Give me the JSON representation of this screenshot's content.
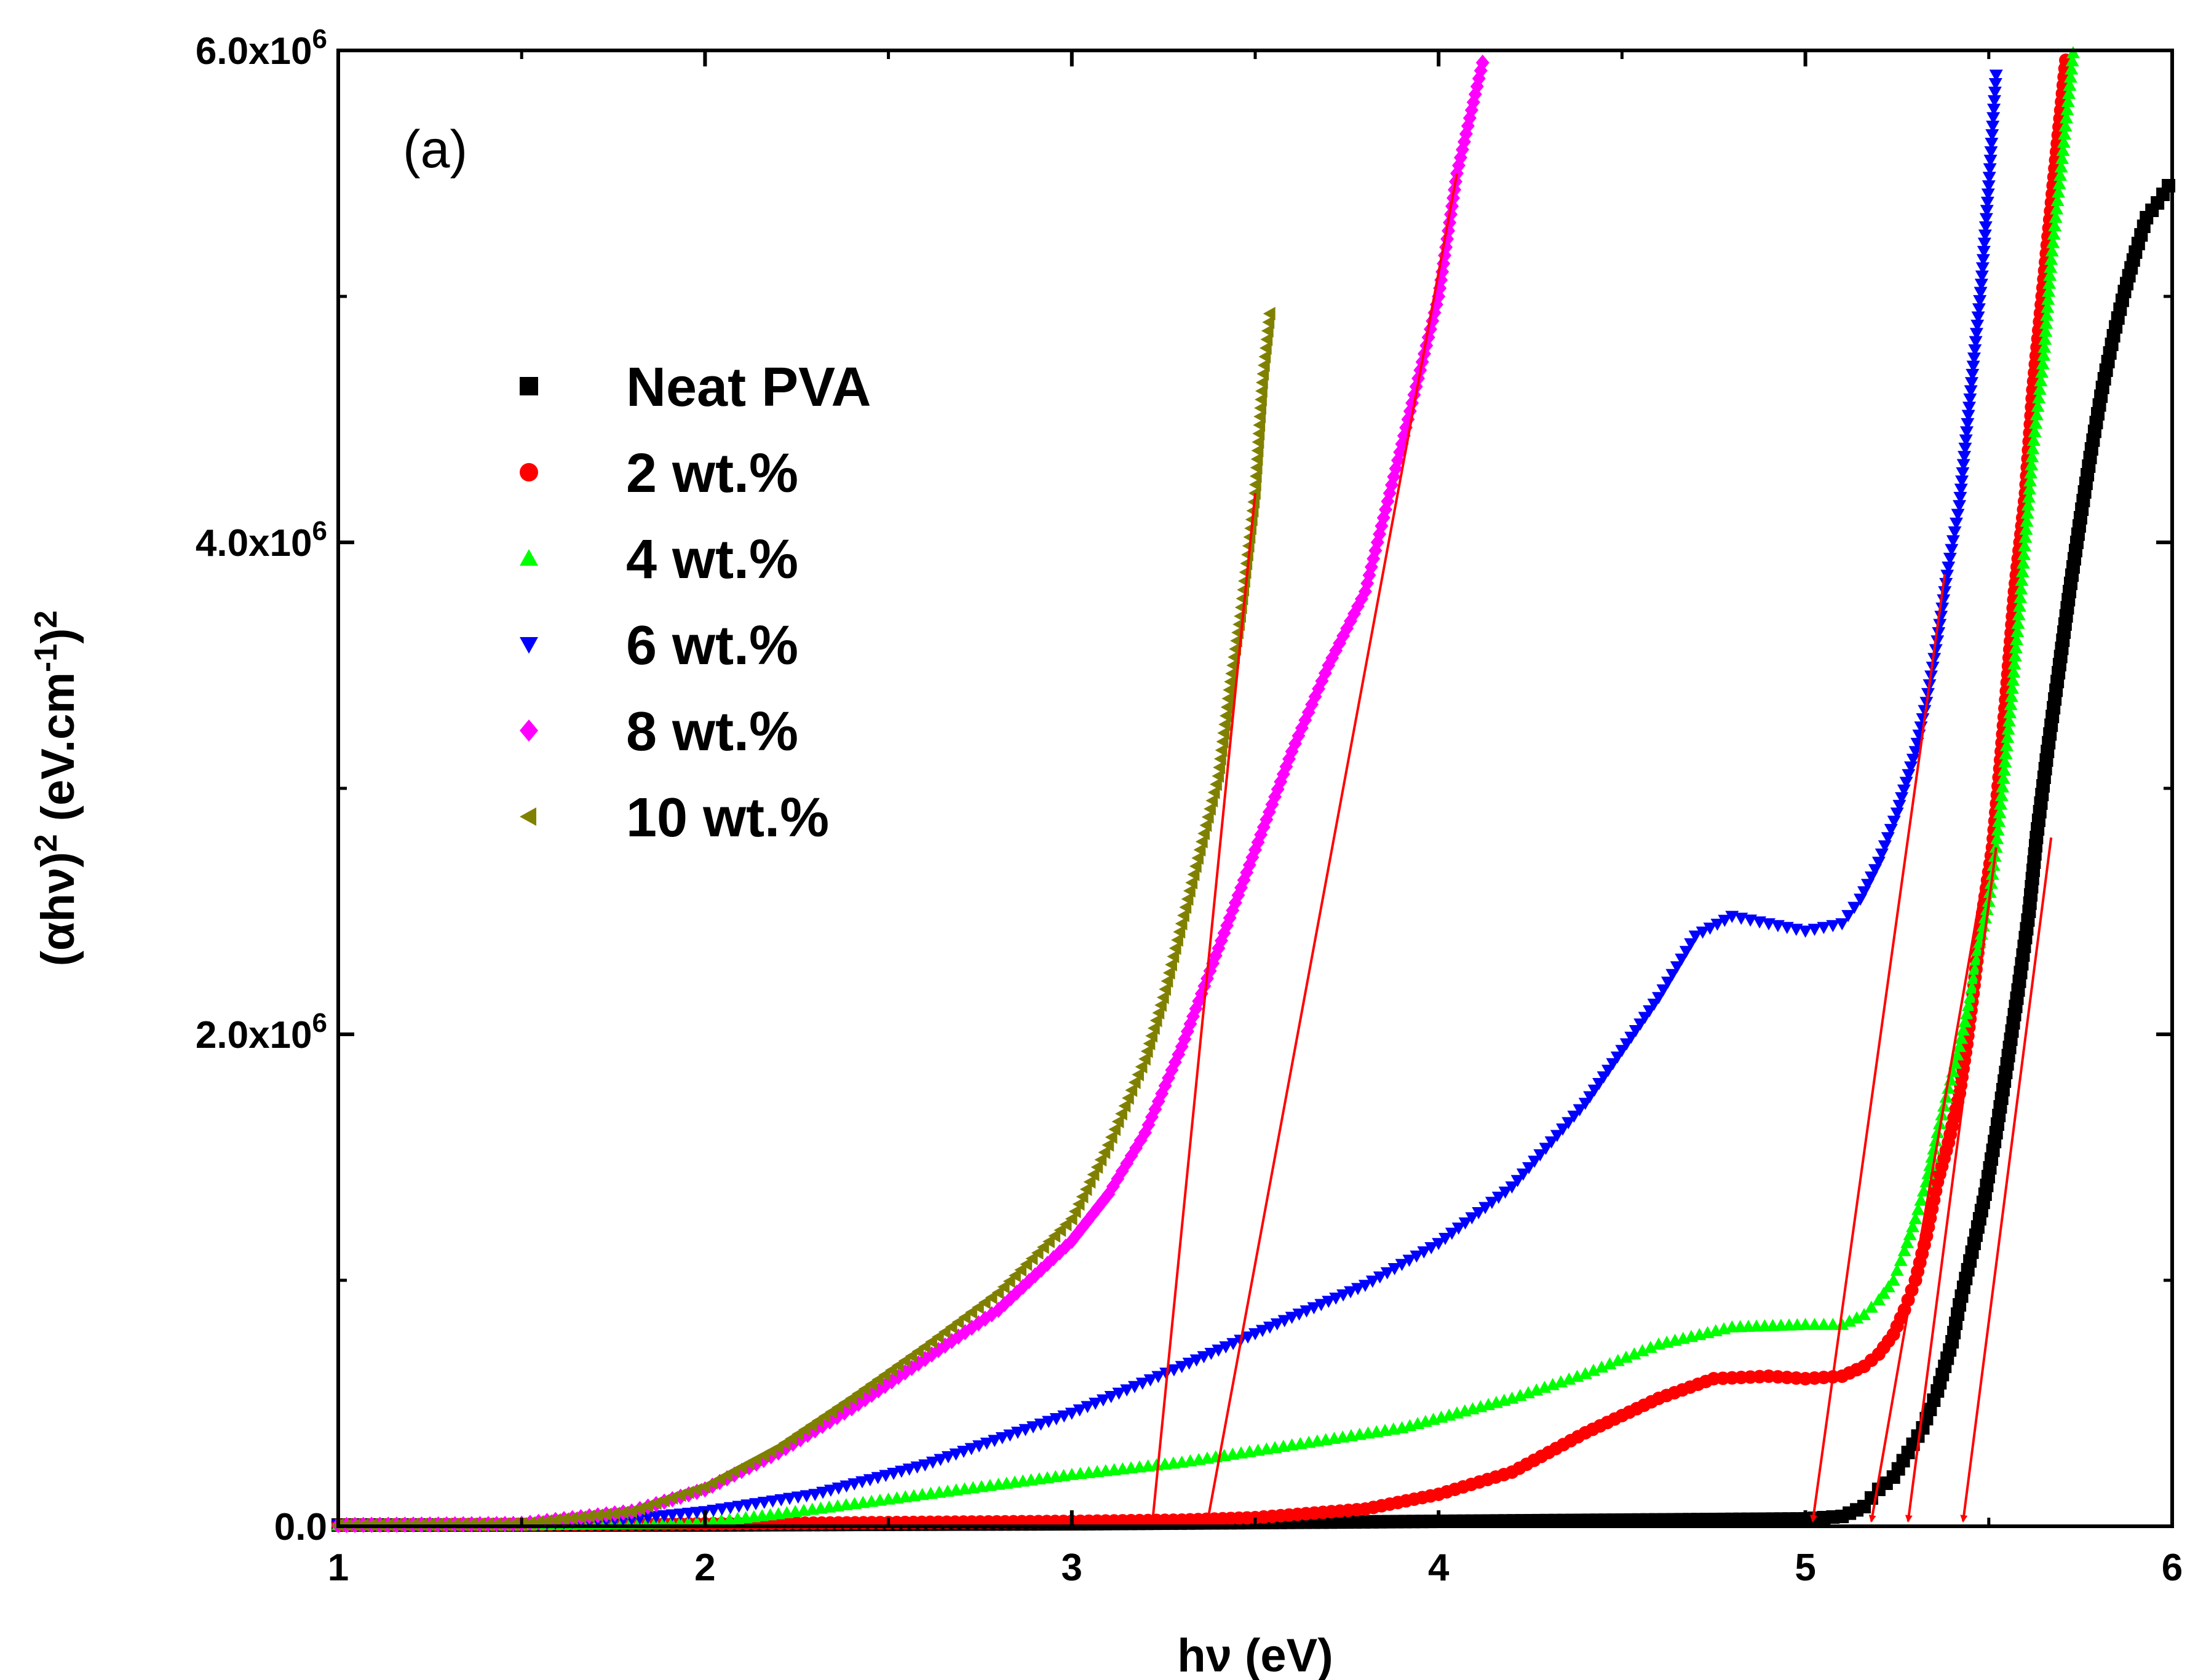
{
  "chart_data": {
    "type": "scatter",
    "panel_label": "(a)",
    "xlabel": "hν (eV)",
    "ylabel": "(αhν)² (eV.cm⁻¹)²",
    "ylabel_parts": {
      "base1": "(αhν)",
      "sup1": "2",
      "base2": " (eV.cm",
      "sup2": "-1",
      "base3": ")",
      "sup3": "2"
    },
    "xlim": [
      1,
      6
    ],
    "ylim": [
      0,
      6000000
    ],
    "x_ticks": [
      1,
      2,
      3,
      4,
      5,
      6
    ],
    "x_tick_labels": [
      "1",
      "2",
      "3",
      "4",
      "5",
      "6"
    ],
    "y_major_ticks": [
      0,
      2000000,
      4000000,
      6000000
    ],
    "y_tick_labels": [
      {
        "mantissa": "0.0",
        "exp": ""
      },
      {
        "mantissa": "2.0x10",
        "exp": "6"
      },
      {
        "mantissa": "4.0x10",
        "exp": "6"
      },
      {
        "mantissa": "6.0x10",
        "exp": "6"
      }
    ],
    "grid": false,
    "legend_position": "upper-left",
    "series": [
      {
        "name": "Neat PVA",
        "color": "#000000",
        "marker": "square",
        "points": [
          [
            1.0,
            5000
          ],
          [
            1.5,
            5000
          ],
          [
            2.0,
            5000
          ],
          [
            2.5,
            8000
          ],
          [
            3.0,
            10000
          ],
          [
            3.5,
            15000
          ],
          [
            4.0,
            20000
          ],
          [
            4.5,
            25000
          ],
          [
            4.8,
            28000
          ],
          [
            5.0,
            30000
          ],
          [
            5.1,
            40000
          ],
          [
            5.16,
            80000
          ],
          [
            5.2,
            150000
          ],
          [
            5.24,
            200000
          ],
          [
            5.28,
            300000
          ],
          [
            5.32,
            400000
          ],
          [
            5.36,
            550000
          ],
          [
            5.4,
            750000
          ],
          [
            5.42,
            900000
          ],
          [
            5.46,
            1150000
          ],
          [
            5.49,
            1350000
          ],
          [
            5.52,
            1600000
          ],
          [
            5.55,
            1880000
          ],
          [
            5.58,
            2180000
          ],
          [
            5.61,
            2500000
          ],
          [
            5.63,
            2800000
          ],
          [
            5.66,
            3150000
          ],
          [
            5.69,
            3470000
          ],
          [
            5.72,
            3800000
          ],
          [
            5.75,
            4100000
          ],
          [
            5.78,
            4380000
          ],
          [
            5.81,
            4630000
          ],
          [
            5.84,
            4840000
          ],
          [
            5.87,
            5020000
          ],
          [
            5.9,
            5180000
          ],
          [
            5.93,
            5320000
          ],
          [
            5.96,
            5380000
          ],
          [
            5.99,
            5450000
          ]
        ]
      },
      {
        "name": "2 wt.%",
        "color": "#ff0000",
        "marker": "circle",
        "points": [
          [
            1.0,
            5000
          ],
          [
            2.0,
            10000
          ],
          [
            2.5,
            15000
          ],
          [
            3.0,
            20000
          ],
          [
            3.3,
            25000
          ],
          [
            3.5,
            35000
          ],
          [
            3.8,
            70000
          ],
          [
            4.0,
            130000
          ],
          [
            4.2,
            220000
          ],
          [
            4.4,
            380000
          ],
          [
            4.6,
            520000
          ],
          [
            4.75,
            600000
          ],
          [
            4.9,
            610000
          ],
          [
            5.0,
            600000
          ],
          [
            5.1,
            610000
          ],
          [
            5.16,
            650000
          ],
          [
            5.2,
            700000
          ],
          [
            5.24,
            780000
          ],
          [
            5.27,
            880000
          ],
          [
            5.3,
            1000000
          ],
          [
            5.33,
            1180000
          ],
          [
            5.36,
            1400000
          ],
          [
            5.39,
            1560000
          ],
          [
            5.42,
            1760000
          ],
          [
            5.44,
            1960000
          ],
          [
            5.46,
            2200000
          ],
          [
            5.48,
            2460000
          ],
          [
            5.51,
            2760000
          ],
          [
            5.53,
            3080000
          ],
          [
            5.55,
            3430000
          ],
          [
            5.57,
            3800000
          ],
          [
            5.6,
            4200000
          ],
          [
            5.62,
            4620000
          ],
          [
            5.65,
            5070000
          ],
          [
            5.68,
            5520000
          ],
          [
            5.71,
            5960000
          ]
        ]
      },
      {
        "name": "4 wt.%",
        "color": "#00ff00",
        "marker": "triangle-up",
        "points": [
          [
            1.0,
            5000
          ],
          [
            1.5,
            5000
          ],
          [
            2.0,
            15000
          ],
          [
            2.2,
            50000
          ],
          [
            2.5,
            110000
          ],
          [
            2.8,
            170000
          ],
          [
            3.0,
            210000
          ],
          [
            3.3,
            260000
          ],
          [
            3.6,
            330000
          ],
          [
            3.9,
            400000
          ],
          [
            4.2,
            520000
          ],
          [
            4.4,
            620000
          ],
          [
            4.6,
            740000
          ],
          [
            4.8,
            810000
          ],
          [
            5.0,
            820000
          ],
          [
            5.1,
            820000
          ],
          [
            5.16,
            860000
          ],
          [
            5.2,
            920000
          ],
          [
            5.24,
            1000000
          ],
          [
            5.27,
            1120000
          ],
          [
            5.3,
            1250000
          ],
          [
            5.33,
            1400000
          ],
          [
            5.36,
            1600000
          ],
          [
            5.39,
            1780000
          ],
          [
            5.42,
            1950000
          ],
          [
            5.45,
            2150000
          ],
          [
            5.47,
            2340000
          ],
          [
            5.5,
            2540000
          ],
          [
            5.52,
            2760000
          ],
          [
            5.54,
            3040000
          ],
          [
            5.56,
            3340000
          ],
          [
            5.58,
            3670000
          ],
          [
            5.6,
            4020000
          ],
          [
            5.62,
            4380000
          ],
          [
            5.65,
            4760000
          ],
          [
            5.67,
            5150000
          ],
          [
            5.7,
            5560000
          ],
          [
            5.73,
            5990000
          ]
        ]
      },
      {
        "name": "6 wt.%",
        "color": "#0000ff",
        "marker": "triangle-down",
        "points": [
          [
            1.0,
            5000
          ],
          [
            1.5,
            5000
          ],
          [
            1.8,
            30000
          ],
          [
            2.0,
            60000
          ],
          [
            2.3,
            130000
          ],
          [
            2.6,
            250000
          ],
          [
            3.0,
            460000
          ],
          [
            3.3,
            650000
          ],
          [
            3.6,
            850000
          ],
          [
            3.8,
            980000
          ],
          [
            4.0,
            1150000
          ],
          [
            4.2,
            1380000
          ],
          [
            4.4,
            1720000
          ],
          [
            4.6,
            2150000
          ],
          [
            4.7,
            2400000
          ],
          [
            4.8,
            2480000
          ],
          [
            4.9,
            2450000
          ],
          [
            5.0,
            2420000
          ],
          [
            5.1,
            2450000
          ],
          [
            5.15,
            2550000
          ],
          [
            5.2,
            2700000
          ],
          [
            5.25,
            2900000
          ],
          [
            5.3,
            3150000
          ],
          [
            5.33,
            3350000
          ],
          [
            5.36,
            3600000
          ],
          [
            5.39,
            3900000
          ],
          [
            5.42,
            4150000
          ],
          [
            5.44,
            4450000
          ],
          [
            5.46,
            4750000
          ],
          [
            5.48,
            5050000
          ],
          [
            5.5,
            5450000
          ],
          [
            5.52,
            5900000
          ]
        ]
      },
      {
        "name": "8 wt.%",
        "color": "#ff00ff",
        "marker": "diamond",
        "points": [
          [
            1.0,
            5000
          ],
          [
            1.5,
            10000
          ],
          [
            1.8,
            60000
          ],
          [
            2.0,
            150000
          ],
          [
            2.2,
            300000
          ],
          [
            2.4,
            480000
          ],
          [
            2.6,
            680000
          ],
          [
            2.8,
            880000
          ],
          [
            3.0,
            1160000
          ],
          [
            3.1,
            1350000
          ],
          [
            3.2,
            1600000
          ],
          [
            3.3,
            1950000
          ],
          [
            3.4,
            2350000
          ],
          [
            3.5,
            2750000
          ],
          [
            3.6,
            3150000
          ],
          [
            3.7,
            3500000
          ],
          [
            3.8,
            3800000
          ],
          [
            3.85,
            4100000
          ],
          [
            3.9,
            4400000
          ],
          [
            3.95,
            4700000
          ],
          [
            4.0,
            5000000
          ],
          [
            4.05,
            5500000
          ],
          [
            4.12,
            5950000
          ]
        ]
      },
      {
        "name": "10 wt.%",
        "color": "#808000",
        "marker": "triangle-left",
        "points": [
          [
            1.0,
            5000
          ],
          [
            1.5,
            10000
          ],
          [
            1.8,
            60000
          ],
          [
            2.0,
            160000
          ],
          [
            2.2,
            320000
          ],
          [
            2.4,
            520000
          ],
          [
            2.6,
            730000
          ],
          [
            2.8,
            950000
          ],
          [
            3.0,
            1250000
          ],
          [
            3.1,
            1550000
          ],
          [
            3.2,
            1900000
          ],
          [
            3.25,
            2150000
          ],
          [
            3.3,
            2450000
          ],
          [
            3.35,
            2750000
          ],
          [
            3.4,
            3050000
          ],
          [
            3.43,
            3400000
          ],
          [
            3.46,
            3700000
          ],
          [
            3.48,
            3950000
          ],
          [
            3.5,
            4200000
          ],
          [
            3.52,
            4650000
          ],
          [
            3.54,
            4930000
          ]
        ]
      }
    ],
    "tangent_lines": [
      {
        "color": "#ff0000",
        "from": [
          3.5,
          4200000
        ],
        "to": [
          3.22,
          20000
        ]
      },
      {
        "color": "#ff0000",
        "from": [
          4.05,
          5500000
        ],
        "to": [
          3.37,
          20000
        ]
      },
      {
        "color": "#ff0000",
        "from": [
          5.38,
          3870000
        ],
        "to": [
          5.02,
          20000
        ]
      },
      {
        "color": "#ff0000",
        "from": [
          5.5,
          2760000
        ],
        "to": [
          5.18,
          20000
        ]
      },
      {
        "color": "#ff0000",
        "from": [
          5.52,
          2760000
        ],
        "to": [
          5.28,
          20000
        ]
      },
      {
        "color": "#ff0000",
        "from": [
          5.67,
          2800000
        ],
        "to": [
          5.43,
          20000
        ]
      }
    ]
  }
}
